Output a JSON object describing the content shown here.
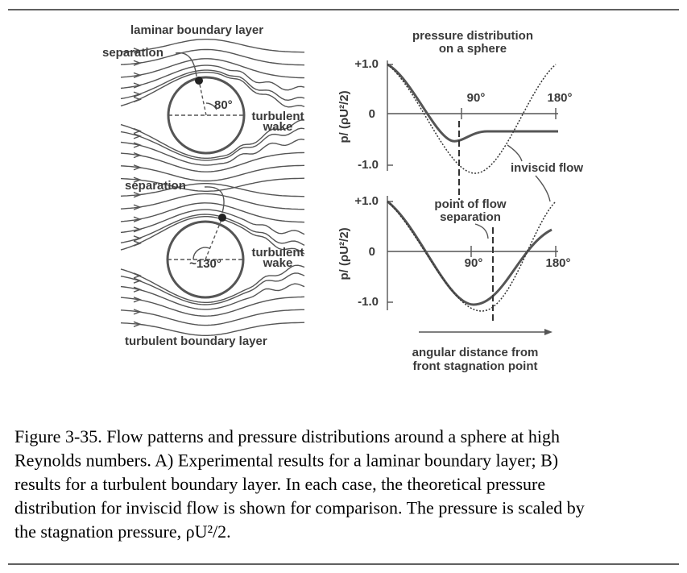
{
  "left_panel": {
    "top_label": "laminar boundary layer",
    "top_separation": "separation",
    "top_angle": "80°",
    "top_wake": [
      "turbulent",
      "wake"
    ],
    "bottom_separation": "separation",
    "bottom_angle": "~130°",
    "bottom_wake": [
      "turbulent",
      "wake"
    ],
    "bottom_label": "turbulent boundary layer"
  },
  "right_panel": {
    "title": [
      "pressure distribution",
      "on a sphere"
    ],
    "top_plot": {
      "y_label": "p/ (ρU²/2)",
      "y_ticks": [
        "+1.0",
        "0",
        "-1.0"
      ],
      "x_ticks": [
        "90°",
        "180°"
      ]
    },
    "bottom_plot": {
      "y_label": "p/ (ρU²/2)",
      "y_ticks": [
        "+1.0",
        "0",
        "-1.0"
      ],
      "x_ticks": [
        "90°",
        "180°"
      ]
    },
    "inviscid_label": "inviscid flow",
    "separation_label": [
      "point of flow",
      "separation"
    ],
    "x_label": [
      "angular distance from",
      "front stagnation point"
    ]
  },
  "caption": [
    "Figure 3-35.  Flow patterns and pressure distributions around a sphere at high",
    "Reynolds numbers.  A) Experimental results for a laminar boundary layer; B)",
    "results for a turbulent boundary layer.  In each case, the theoretical pressure",
    "distribution for inviscid flow is shown for comparison.  The pressure is scaled by",
    "the stagnation pressure, ρU²/2."
  ]
}
